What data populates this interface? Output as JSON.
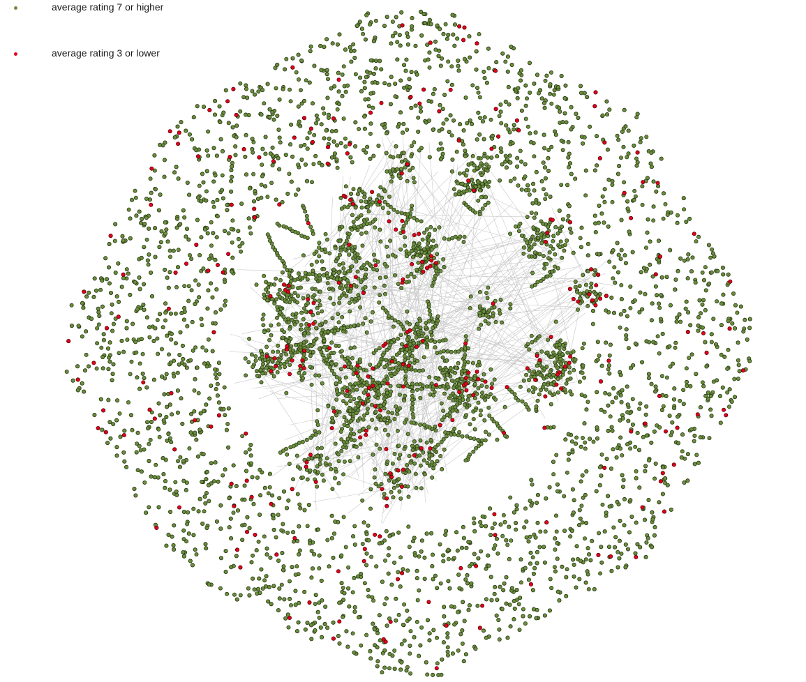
{
  "legend": {
    "items": [
      {
        "label": "average rating 7 or higher",
        "color": "#6b8f3c"
      },
      {
        "label": "average rating 3 or lower",
        "color": "#e8001c"
      }
    ]
  },
  "colors": {
    "node_high": "#6b8f3c",
    "node_high_stroke": "#2b3a18",
    "node_low": "#e8001c",
    "node_low_stroke": "#5a0008",
    "edge": "#c8c8c8"
  }
}
